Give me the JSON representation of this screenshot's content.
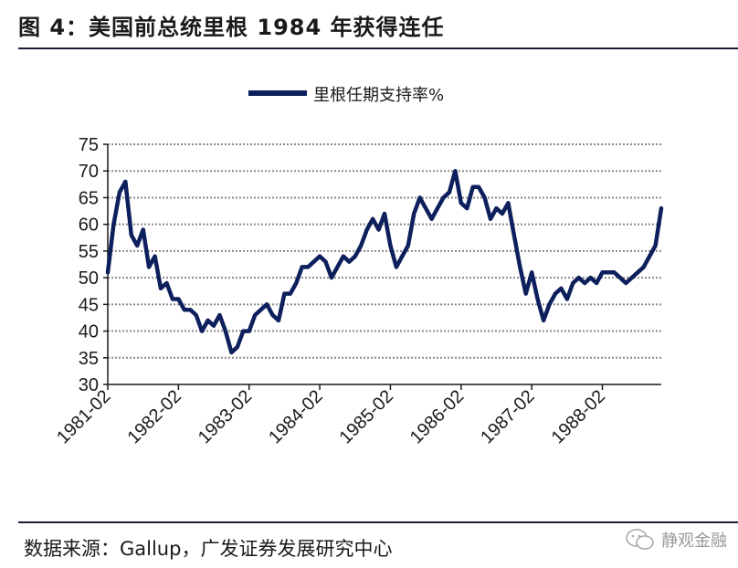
{
  "figure": {
    "title": "图 4：美国前总统里根 1984 年获得连任",
    "source": "数据来源：Gallup，广发证券发展研究中心",
    "watermark": "静观金融",
    "watermark_icon": "wechat-icon"
  },
  "chart_data": {
    "type": "line",
    "legend": "里根任期支持率%",
    "legend_position": "top-center",
    "grid": "horizontal dotted",
    "ylim": [
      30,
      75
    ],
    "yticks": [
      75,
      70,
      65,
      60,
      55,
      50,
      45,
      40,
      35,
      30
    ],
    "xticks": [
      "1981-02",
      "1982-02",
      "1983-02",
      "1984-02",
      "1985-02",
      "1986-02",
      "1987-02",
      "1988-02"
    ],
    "xlim": [
      "1981-02",
      "1988-12"
    ],
    "line_color": "#0d1f5c",
    "series": [
      {
        "name": "里根任期支持率%",
        "x": [
          "1981-02",
          "1981-03",
          "1981-04",
          "1981-05",
          "1981-06",
          "1981-07",
          "1981-08",
          "1981-09",
          "1981-10",
          "1981-11",
          "1981-12",
          "1982-01",
          "1982-02",
          "1982-03",
          "1982-04",
          "1982-05",
          "1982-06",
          "1982-07",
          "1982-08",
          "1982-09",
          "1982-10",
          "1982-11",
          "1982-12",
          "1983-01",
          "1983-02",
          "1983-03",
          "1983-04",
          "1983-05",
          "1983-06",
          "1983-07",
          "1983-08",
          "1983-09",
          "1983-10",
          "1983-11",
          "1983-12",
          "1984-01",
          "1984-02",
          "1984-03",
          "1984-04",
          "1984-05",
          "1984-06",
          "1984-07",
          "1984-08",
          "1984-09",
          "1984-10",
          "1984-11",
          "1984-12",
          "1985-01",
          "1985-02",
          "1985-03",
          "1985-04",
          "1985-05",
          "1985-06",
          "1985-07",
          "1985-08",
          "1985-09",
          "1985-10",
          "1985-11",
          "1985-12",
          "1986-01",
          "1986-02",
          "1986-03",
          "1986-04",
          "1986-05",
          "1986-06",
          "1986-07",
          "1986-08",
          "1986-09",
          "1986-10",
          "1986-11",
          "1986-12",
          "1987-01",
          "1987-02",
          "1987-03",
          "1987-04",
          "1987-05",
          "1987-06",
          "1987-07",
          "1987-08",
          "1987-09",
          "1987-10",
          "1987-11",
          "1987-12",
          "1988-01",
          "1988-02",
          "1988-03",
          "1988-04",
          "1988-05",
          "1988-06",
          "1988-07",
          "1988-08",
          "1988-09",
          "1988-10",
          "1988-11",
          "1988-12"
        ],
        "values": [
          51,
          60,
          66,
          68,
          58,
          56,
          59,
          52,
          54,
          48,
          49,
          46,
          46,
          44,
          44,
          43,
          40,
          42,
          41,
          43,
          40,
          36,
          37,
          40,
          40,
          43,
          44,
          45,
          43,
          42,
          47,
          47,
          49,
          52,
          52,
          53,
          54,
          53,
          50,
          52,
          54,
          53,
          54,
          56,
          59,
          61,
          59,
          62,
          56,
          52,
          54,
          56,
          62,
          65,
          63,
          61,
          63,
          65,
          66,
          70,
          64,
          63,
          67,
          67,
          65,
          61,
          63,
          62,
          64,
          58,
          52,
          47,
          51,
          46,
          42,
          45,
          47,
          48,
          46,
          49,
          50,
          49,
          50,
          49,
          51,
          51,
          51,
          50,
          49,
          50,
          51,
          52,
          54,
          56,
          63
        ]
      }
    ]
  }
}
